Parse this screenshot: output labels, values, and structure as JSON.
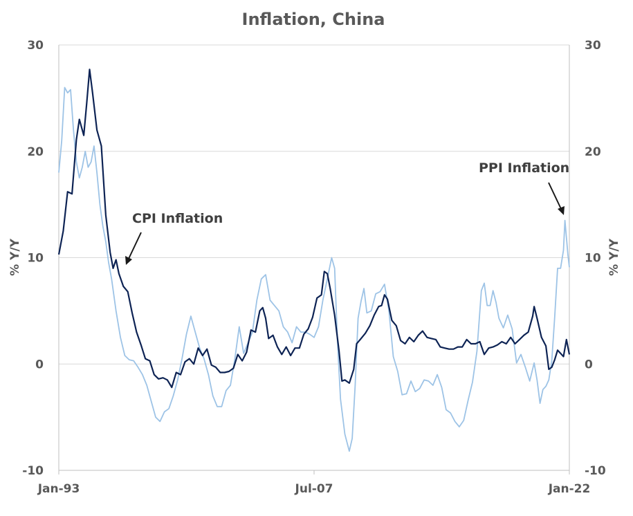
{
  "chart_data": {
    "type": "line",
    "title": "Inflation, China",
    "ylabel_left": "% Y/Y",
    "ylabel_right": "% Y/Y",
    "ylim": [
      -10,
      30
    ],
    "yticks": [
      "30",
      "20",
      "10",
      "0",
      "-10"
    ],
    "xlim": [
      "1993-01",
      "2022-01"
    ],
    "xticks": [
      {
        "date": "1993-01",
        "label": "Jan-93"
      },
      {
        "date": "2007-07",
        "label": "Jul-07"
      },
      {
        "date": "2022-01",
        "label": "Jan-22"
      }
    ],
    "grid": true,
    "legend": "none",
    "series": [
      {
        "name": "CPI Inflation",
        "color": "#0d2354",
        "points": [
          [
            "1993-01",
            10.3
          ],
          [
            "1993-04",
            12.5
          ],
          [
            "1993-07",
            16.2
          ],
          [
            "1993-10",
            16.0
          ],
          [
            "1994-01",
            21.1
          ],
          [
            "1994-03",
            23.0
          ],
          [
            "1994-06",
            21.5
          ],
          [
            "1994-08",
            24.5
          ],
          [
            "1994-10",
            27.7
          ],
          [
            "1994-12",
            25.5
          ],
          [
            "1995-03",
            22.0
          ],
          [
            "1995-06",
            20.5
          ],
          [
            "1995-09",
            14.0
          ],
          [
            "1995-12",
            10.5
          ],
          [
            "1996-02",
            9.0
          ],
          [
            "1996-04",
            9.8
          ],
          [
            "1996-06",
            8.5
          ],
          [
            "1996-09",
            7.3
          ],
          [
            "1996-12",
            6.8
          ],
          [
            "1997-03",
            4.8
          ],
          [
            "1997-06",
            3.0
          ],
          [
            "1997-09",
            1.8
          ],
          [
            "1997-12",
            0.5
          ],
          [
            "1998-03",
            0.3
          ],
          [
            "1998-06",
            -1.0
          ],
          [
            "1998-09",
            -1.4
          ],
          [
            "1998-12",
            -1.3
          ],
          [
            "1999-03",
            -1.5
          ],
          [
            "1999-06",
            -2.2
          ],
          [
            "1999-09",
            -0.8
          ],
          [
            "1999-12",
            -1.0
          ],
          [
            "2000-03",
            0.2
          ],
          [
            "2000-06",
            0.5
          ],
          [
            "2000-09",
            0.0
          ],
          [
            "2000-12",
            1.5
          ],
          [
            "2001-03",
            0.8
          ],
          [
            "2001-06",
            1.4
          ],
          [
            "2001-09",
            -0.1
          ],
          [
            "2001-12",
            -0.3
          ],
          [
            "2002-03",
            -0.8
          ],
          [
            "2002-06",
            -0.8
          ],
          [
            "2002-09",
            -0.7
          ],
          [
            "2002-12",
            -0.4
          ],
          [
            "2003-03",
            0.9
          ],
          [
            "2003-06",
            0.3
          ],
          [
            "2003-09",
            1.1
          ],
          [
            "2003-12",
            3.2
          ],
          [
            "2004-03",
            3.0
          ],
          [
            "2004-06",
            5.0
          ],
          [
            "2004-08",
            5.3
          ],
          [
            "2004-10",
            4.3
          ],
          [
            "2004-12",
            2.4
          ],
          [
            "2005-03",
            2.7
          ],
          [
            "2005-06",
            1.6
          ],
          [
            "2005-09",
            0.9
          ],
          [
            "2005-12",
            1.6
          ],
          [
            "2006-03",
            0.8
          ],
          [
            "2006-06",
            1.5
          ],
          [
            "2006-09",
            1.5
          ],
          [
            "2006-12",
            2.8
          ],
          [
            "2007-03",
            3.3
          ],
          [
            "2007-06",
            4.4
          ],
          [
            "2007-09",
            6.2
          ],
          [
            "2007-12",
            6.5
          ],
          [
            "2008-02",
            8.7
          ],
          [
            "2008-04",
            8.5
          ],
          [
            "2008-06",
            7.1
          ],
          [
            "2008-09",
            4.6
          ],
          [
            "2008-12",
            1.2
          ],
          [
            "2009-02",
            -1.6
          ],
          [
            "2009-04",
            -1.5
          ],
          [
            "2009-07",
            -1.8
          ],
          [
            "2009-10",
            -0.5
          ],
          [
            "2009-12",
            1.9
          ],
          [
            "2010-03",
            2.4
          ],
          [
            "2010-06",
            2.9
          ],
          [
            "2010-09",
            3.6
          ],
          [
            "2010-12",
            4.6
          ],
          [
            "2011-03",
            5.4
          ],
          [
            "2011-05",
            5.5
          ],
          [
            "2011-07",
            6.5
          ],
          [
            "2011-09",
            6.1
          ],
          [
            "2011-12",
            4.1
          ],
          [
            "2012-03",
            3.6
          ],
          [
            "2012-06",
            2.2
          ],
          [
            "2012-09",
            1.9
          ],
          [
            "2012-12",
            2.5
          ],
          [
            "2013-03",
            2.1
          ],
          [
            "2013-06",
            2.7
          ],
          [
            "2013-09",
            3.1
          ],
          [
            "2013-12",
            2.5
          ],
          [
            "2014-03",
            2.4
          ],
          [
            "2014-06",
            2.3
          ],
          [
            "2014-09",
            1.6
          ],
          [
            "2014-12",
            1.5
          ],
          [
            "2015-03",
            1.4
          ],
          [
            "2015-06",
            1.4
          ],
          [
            "2015-09",
            1.6
          ],
          [
            "2015-12",
            1.6
          ],
          [
            "2016-03",
            2.3
          ],
          [
            "2016-06",
            1.9
          ],
          [
            "2016-09",
            1.9
          ],
          [
            "2016-12",
            2.1
          ],
          [
            "2017-03",
            0.9
          ],
          [
            "2017-06",
            1.5
          ],
          [
            "2017-09",
            1.6
          ],
          [
            "2017-12",
            1.8
          ],
          [
            "2018-03",
            2.1
          ],
          [
            "2018-06",
            1.9
          ],
          [
            "2018-09",
            2.5
          ],
          [
            "2018-12",
            1.9
          ],
          [
            "2019-03",
            2.3
          ],
          [
            "2019-06",
            2.7
          ],
          [
            "2019-09",
            3.0
          ],
          [
            "2019-12",
            4.5
          ],
          [
            "2020-01",
            5.4
          ],
          [
            "2020-03",
            4.3
          ],
          [
            "2020-06",
            2.5
          ],
          [
            "2020-09",
            1.7
          ],
          [
            "2020-11",
            -0.5
          ],
          [
            "2021-01",
            -0.3
          ],
          [
            "2021-03",
            0.4
          ],
          [
            "2021-05",
            1.3
          ],
          [
            "2021-07",
            1.0
          ],
          [
            "2021-09",
            0.7
          ],
          [
            "2021-11",
            2.3
          ],
          [
            "2022-01",
            0.9
          ]
        ]
      },
      {
        "name": "PPI Inflation",
        "color": "#9dc3e6",
        "points": [
          [
            "1993-01",
            18.0
          ],
          [
            "1993-03",
            21.0
          ],
          [
            "1993-05",
            26.0
          ],
          [
            "1993-07",
            25.5
          ],
          [
            "1993-09",
            25.8
          ],
          [
            "1993-11",
            22.0
          ],
          [
            "1994-01",
            19.0
          ],
          [
            "1994-03",
            17.5
          ],
          [
            "1994-05",
            18.5
          ],
          [
            "1994-07",
            20.0
          ],
          [
            "1994-09",
            18.5
          ],
          [
            "1994-11",
            19.0
          ],
          [
            "1995-01",
            20.5
          ],
          [
            "1995-03",
            18.0
          ],
          [
            "1995-05",
            15.0
          ],
          [
            "1995-07",
            13.0
          ],
          [
            "1995-09",
            11.5
          ],
          [
            "1995-11",
            9.5
          ],
          [
            "1996-01",
            8.0
          ],
          [
            "1996-04",
            5.0
          ],
          [
            "1996-07",
            2.5
          ],
          [
            "1996-10",
            0.8
          ],
          [
            "1997-01",
            0.4
          ],
          [
            "1997-04",
            0.3
          ],
          [
            "1997-07",
            -0.3
          ],
          [
            "1997-10",
            -1.0
          ],
          [
            "1998-01",
            -2.0
          ],
          [
            "1998-04",
            -3.5
          ],
          [
            "1998-07",
            -5.0
          ],
          [
            "1998-10",
            -5.4
          ],
          [
            "1999-01",
            -4.5
          ],
          [
            "1999-04",
            -4.2
          ],
          [
            "1999-07",
            -3.0
          ],
          [
            "1999-10",
            -1.5
          ],
          [
            "2000-01",
            0.5
          ],
          [
            "2000-04",
            2.8
          ],
          [
            "2000-07",
            4.5
          ],
          [
            "2000-10",
            3.0
          ],
          [
            "2001-01",
            1.5
          ],
          [
            "2001-04",
            0.5
          ],
          [
            "2001-07",
            -1.0
          ],
          [
            "2001-10",
            -3.0
          ],
          [
            "2002-01",
            -4.0
          ],
          [
            "2002-04",
            -4.0
          ],
          [
            "2002-07",
            -2.5
          ],
          [
            "2002-10",
            -2.0
          ],
          [
            "2003-01",
            0.5
          ],
          [
            "2003-04",
            3.5
          ],
          [
            "2003-07",
            1.0
          ],
          [
            "2003-10",
            2.0
          ],
          [
            "2004-01",
            3.0
          ],
          [
            "2004-04",
            6.0
          ],
          [
            "2004-07",
            8.0
          ],
          [
            "2004-10",
            8.4
          ],
          [
            "2005-01",
            6.0
          ],
          [
            "2005-04",
            5.5
          ],
          [
            "2005-07",
            5.0
          ],
          [
            "2005-10",
            3.5
          ],
          [
            "2006-01",
            3.0
          ],
          [
            "2006-04",
            2.0
          ],
          [
            "2006-07",
            3.5
          ],
          [
            "2006-10",
            3.0
          ],
          [
            "2007-01",
            3.0
          ],
          [
            "2007-04",
            2.8
          ],
          [
            "2007-07",
            2.5
          ],
          [
            "2007-10",
            3.5
          ],
          [
            "2008-01",
            6.0
          ],
          [
            "2008-04",
            8.0
          ],
          [
            "2008-07",
            10.0
          ],
          [
            "2008-09",
            9.0
          ],
          [
            "2008-11",
            2.0
          ],
          [
            "2009-01",
            -3.3
          ],
          [
            "2009-04",
            -6.6
          ],
          [
            "2009-07",
            -8.2
          ],
          [
            "2009-09",
            -7.0
          ],
          [
            "2009-11",
            -2.0
          ],
          [
            "2010-01",
            4.3
          ],
          [
            "2010-03",
            5.9
          ],
          [
            "2010-05",
            7.1
          ],
          [
            "2010-07",
            4.8
          ],
          [
            "2010-10",
            5.0
          ],
          [
            "2011-01",
            6.6
          ],
          [
            "2011-04",
            6.8
          ],
          [
            "2011-07",
            7.5
          ],
          [
            "2011-10",
            5.0
          ],
          [
            "2012-01",
            0.7
          ],
          [
            "2012-04",
            -0.7
          ],
          [
            "2012-07",
            -2.9
          ],
          [
            "2012-10",
            -2.8
          ],
          [
            "2013-01",
            -1.6
          ],
          [
            "2013-04",
            -2.6
          ],
          [
            "2013-07",
            -2.3
          ],
          [
            "2013-10",
            -1.5
          ],
          [
            "2014-01",
            -1.6
          ],
          [
            "2014-04",
            -2.0
          ],
          [
            "2014-07",
            -1.0
          ],
          [
            "2014-10",
            -2.2
          ],
          [
            "2015-01",
            -4.3
          ],
          [
            "2015-04",
            -4.6
          ],
          [
            "2015-07",
            -5.4
          ],
          [
            "2015-10",
            -5.9
          ],
          [
            "2016-01",
            -5.3
          ],
          [
            "2016-04",
            -3.4
          ],
          [
            "2016-07",
            -1.7
          ],
          [
            "2016-10",
            1.2
          ],
          [
            "2017-01",
            6.9
          ],
          [
            "2017-03",
            7.6
          ],
          [
            "2017-05",
            5.5
          ],
          [
            "2017-07",
            5.5
          ],
          [
            "2017-09",
            6.9
          ],
          [
            "2017-11",
            5.8
          ],
          [
            "2018-01",
            4.3
          ],
          [
            "2018-04",
            3.4
          ],
          [
            "2018-07",
            4.6
          ],
          [
            "2018-10",
            3.3
          ],
          [
            "2019-01",
            0.1
          ],
          [
            "2019-04",
            0.9
          ],
          [
            "2019-07",
            -0.3
          ],
          [
            "2019-10",
            -1.6
          ],
          [
            "2020-01",
            0.1
          ],
          [
            "2020-03",
            -1.5
          ],
          [
            "2020-05",
            -3.7
          ],
          [
            "2020-07",
            -2.4
          ],
          [
            "2020-09",
            -2.1
          ],
          [
            "2020-11",
            -1.5
          ],
          [
            "2021-01",
            0.3
          ],
          [
            "2021-03",
            4.4
          ],
          [
            "2021-05",
            9.0
          ],
          [
            "2021-07",
            9.0
          ],
          [
            "2021-09",
            10.7
          ],
          [
            "2021-10",
            13.5
          ],
          [
            "2021-12",
            10.3
          ],
          [
            "2022-01",
            9.1
          ]
        ]
      }
    ],
    "annotations": [
      {
        "text": "CPI Inflation",
        "target": "CPI Inflation"
      },
      {
        "text": "PPI Inflation",
        "target": "PPI Inflation"
      }
    ]
  }
}
